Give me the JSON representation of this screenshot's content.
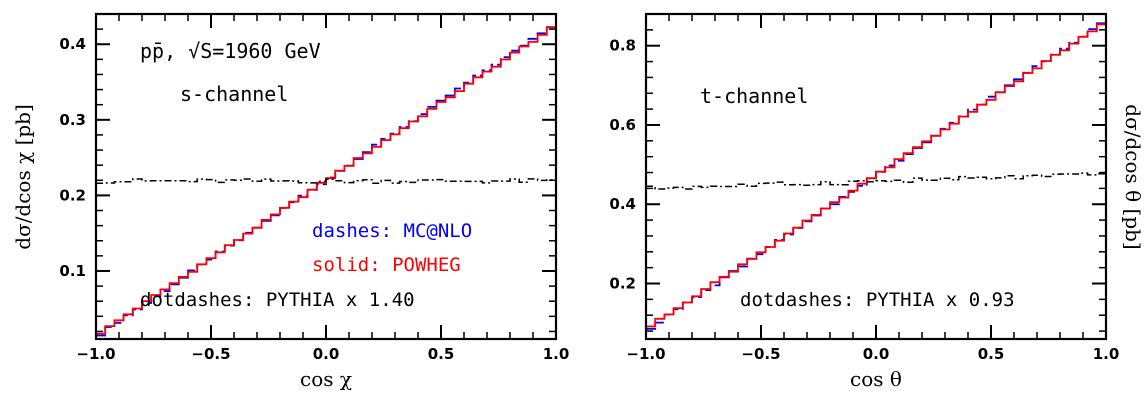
{
  "chart_data": [
    {
      "type": "line",
      "xlabel": "cos χ",
      "ylabel": "dσ/dcos χ [pb]",
      "xlim": [
        -1.0,
        1.0
      ],
      "ylim": [
        0.01,
        0.44
      ],
      "x_ticks": [
        "−1.0",
        "−0.5",
        "0.0",
        "0.5",
        "1.0"
      ],
      "y_ticks": [
        "0.1",
        "0.2",
        "0.3",
        "0.4"
      ],
      "x_tick_values": [
        -1.0,
        -0.5,
        0.0,
        0.5,
        1.0
      ],
      "y_tick_values": [
        0.1,
        0.2,
        0.3,
        0.4
      ],
      "annotations": {
        "process": "pp̄, √S=1960 GeV",
        "channel": "s-channel",
        "mcatnlo": "dashes: MC@NLO",
        "powheg": "solid: POWHEG",
        "pythia": "dotdashes: PYTHIA x 1.40"
      },
      "series": [
        {
          "name": "MC@NLO",
          "style": "dashes",
          "color": "#0000ff",
          "n_bins": 50,
          "y_start": 0.012,
          "y_end": 0.428
        },
        {
          "name": "POWHEG",
          "style": "solid",
          "color": "#ff0000",
          "n_bins": 50,
          "y_start": 0.014,
          "y_end": 0.425
        },
        {
          "name": "PYTHIA x 1.40",
          "style": "dotdashes",
          "color": "#000000",
          "n_bins": 50,
          "y_level": 0.219
        }
      ]
    },
    {
      "type": "line",
      "xlabel": "cos θ",
      "ylabel": "dσ/dcos θ [pb]",
      "xlim": [
        -1.0,
        1.0
      ],
      "ylim": [
        0.06,
        0.88
      ],
      "x_ticks": [
        "−1.0",
        "−0.5",
        "0.0",
        "0.5",
        "1.0"
      ],
      "y_ticks": [
        "0.2",
        "0.4",
        "0.6",
        "0.8"
      ],
      "x_tick_values": [
        -1.0,
        -0.5,
        0.0,
        0.5,
        1.0
      ],
      "y_tick_values": [
        0.2,
        0.4,
        0.6,
        0.8
      ],
      "annotations": {
        "channel": "t-channel",
        "pythia": "dotdashes: PYTHIA x 0.93"
      },
      "series": [
        {
          "name": "MC@NLO",
          "style": "dashes",
          "color": "#0000ff",
          "n_bins": 50,
          "y_start": 0.08,
          "y_end": 0.865
        },
        {
          "name": "POWHEG",
          "style": "solid",
          "color": "#ff0000",
          "n_bins": 50,
          "y_start": 0.085,
          "y_end": 0.86
        },
        {
          "name": "PYTHIA x 0.93",
          "style": "dotdashes",
          "color": "#000000",
          "n_bins": 50,
          "y_start_level": 0.44,
          "y_end_level": 0.475
        }
      ]
    }
  ]
}
